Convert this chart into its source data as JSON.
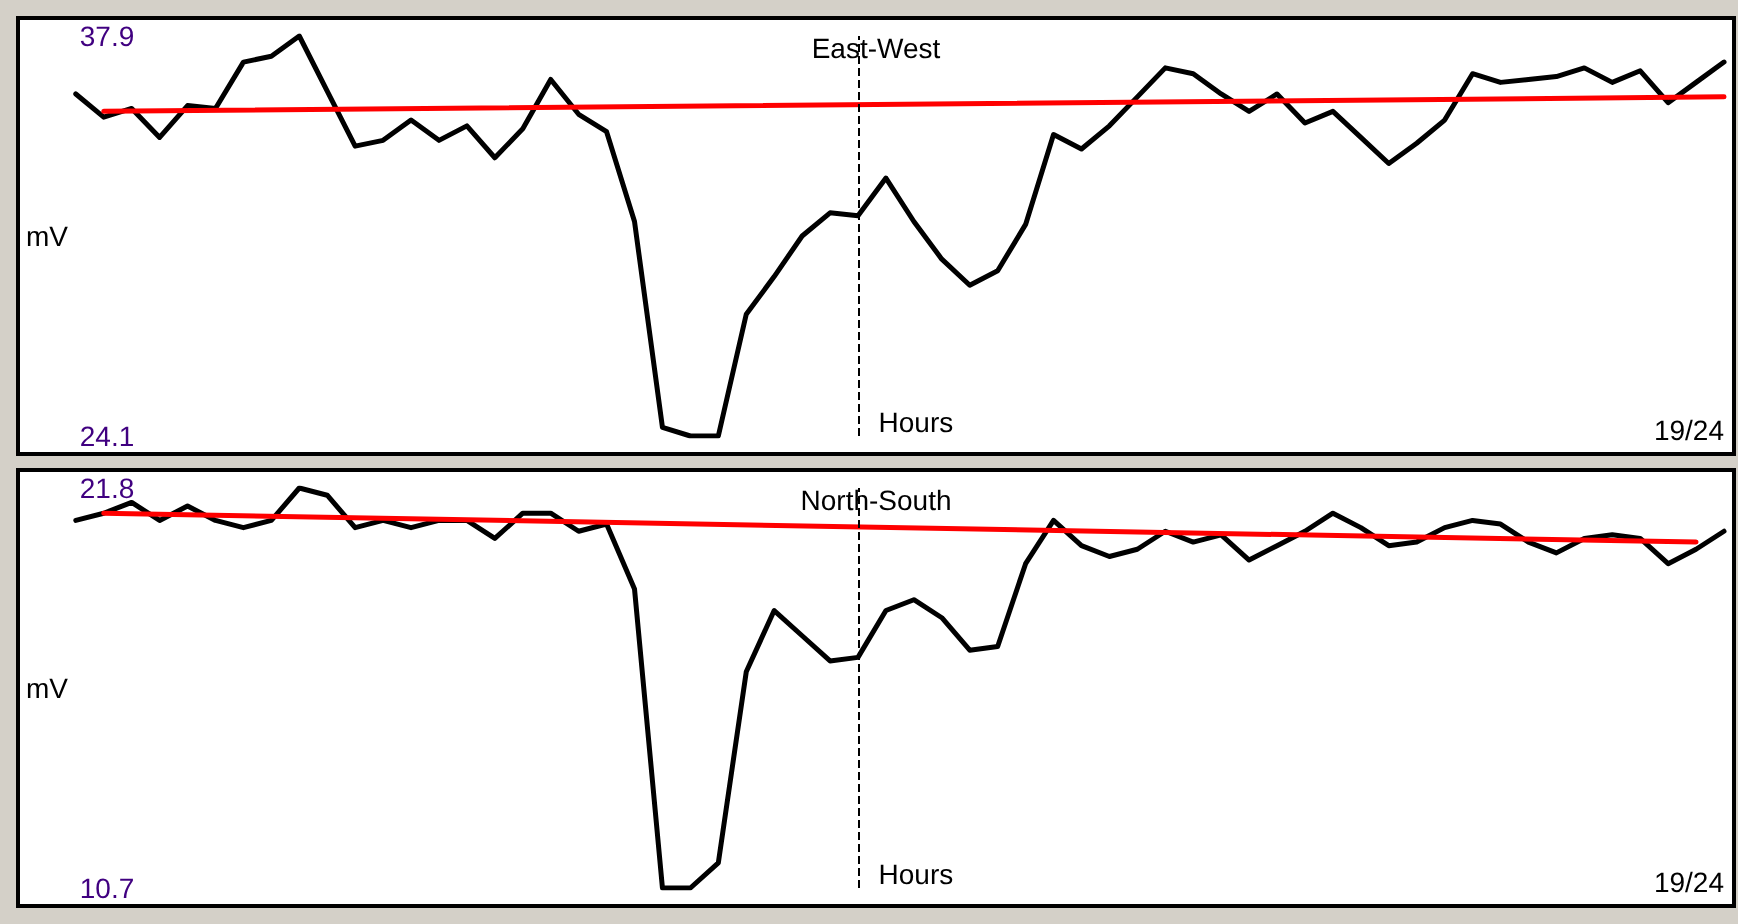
{
  "chart_data": [
    {
      "type": "line",
      "title": "East-West",
      "xlabel": "Hours",
      "ylabel": "mV",
      "categories": [
        null,
        null,
        null,
        null,
        null,
        null,
        null,
        null,
        null,
        null,
        null,
        null,
        null,
        null,
        null,
        null,
        null,
        null,
        null,
        null,
        null,
        null,
        null,
        null,
        null,
        null,
        null,
        null,
        null,
        null,
        null,
        null,
        null,
        null,
        null,
        null,
        null,
        null,
        null,
        null,
        null,
        null,
        null,
        null,
        null,
        null,
        null,
        null,
        null,
        null,
        null,
        null,
        null,
        null,
        null,
        null,
        null,
        null,
        null,
        null
      ],
      "series": [
        {
          "color": "#000000",
          "values": [
            35.9,
            35.1,
            35.4,
            34.4,
            35.5,
            35.4,
            37.0,
            37.2,
            37.9,
            36.0,
            34.1,
            34.3,
            35.0,
            34.3,
            34.8,
            33.7,
            34.7,
            36.4,
            35.2,
            34.6,
            31.5,
            24.4,
            24.1,
            24.1,
            28.3,
            29.6,
            31.0,
            31.8,
            31.7,
            33.0,
            31.5,
            30.2,
            29.3,
            29.8,
            31.4,
            34.5,
            34.0,
            34.8,
            35.8,
            36.8,
            36.6,
            35.9,
            35.3,
            35.9,
            34.9,
            35.3,
            34.4,
            33.5,
            34.2,
            35.0,
            36.6,
            36.3,
            36.4,
            36.5,
            36.8,
            36.3,
            36.7,
            35.6,
            36.3,
            37.0
          ]
        },
        {
          "type": "line",
          "color": "#ff0000",
          "values": [
            null,
            35.3,
            null,
            null,
            null,
            null,
            null,
            null,
            null,
            null,
            null,
            null,
            null,
            null,
            null,
            null,
            null,
            null,
            null,
            null,
            null,
            null,
            null,
            null,
            null,
            null,
            null,
            null,
            null,
            null,
            null,
            null,
            null,
            null,
            null,
            null,
            null,
            null,
            null,
            null,
            null,
            null,
            null,
            null,
            null,
            null,
            null,
            null,
            null,
            null,
            null,
            null,
            null,
            null,
            null,
            null,
            null,
            null,
            null,
            35.8
          ]
        }
      ],
      "ylim": [
        24.1,
        37.9
      ],
      "yticks": [
        37.9,
        24.1
      ],
      "tick_labels": "y",
      "marker": "none",
      "line_style": "solid",
      "annotations": [
        "19/24"
      ]
    },
    {
      "type": "line",
      "title": "North-South",
      "xlabel": "Hours",
      "ylabel": "mV",
      "categories": [
        null,
        null,
        null,
        null,
        null,
        null,
        null,
        null,
        null,
        null,
        null,
        null,
        null,
        null,
        null,
        null,
        null,
        null,
        null,
        null,
        null,
        null,
        null,
        null,
        null,
        null,
        null,
        null,
        null,
        null,
        null,
        null,
        null,
        null,
        null,
        null,
        null,
        null,
        null,
        null,
        null,
        null,
        null,
        null,
        null,
        null,
        null,
        null,
        null,
        null,
        null,
        null,
        null,
        null,
        null,
        null,
        null,
        null,
        null,
        null
      ],
      "series": [
        {
          "color": "#000000",
          "values": [
            20.9,
            21.1,
            21.4,
            20.9,
            21.3,
            20.9,
            20.7,
            20.9,
            21.8,
            21.6,
            20.7,
            20.9,
            20.7,
            20.9,
            20.9,
            20.4,
            21.1,
            21.1,
            20.6,
            20.8,
            19.0,
            10.7,
            10.7,
            11.4,
            16.7,
            18.4,
            17.7,
            17.0,
            17.1,
            18.4,
            18.7,
            18.2,
            17.3,
            17.4,
            19.7,
            20.9,
            20.2,
            19.9,
            20.1,
            20.6,
            20.3,
            20.5,
            19.8,
            20.2,
            20.6,
            21.1,
            20.7,
            20.2,
            20.3,
            20.7,
            20.9,
            20.8,
            20.3,
            20.0,
            20.4,
            20.5,
            20.4,
            19.7,
            20.1,
            20.6
          ]
        },
        {
          "type": "line",
          "color": "#ff0000",
          "values": [
            null,
            21.1,
            null,
            null,
            null,
            null,
            null,
            null,
            null,
            null,
            null,
            null,
            null,
            null,
            null,
            null,
            null,
            null,
            null,
            null,
            null,
            null,
            null,
            null,
            null,
            null,
            null,
            null,
            null,
            null,
            null,
            null,
            null,
            null,
            null,
            null,
            null,
            null,
            null,
            null,
            null,
            null,
            null,
            null,
            null,
            null,
            null,
            null,
            null,
            null,
            null,
            null,
            null,
            null,
            null,
            null,
            null,
            null,
            20.3,
            null
          ]
        }
      ],
      "ylim": [
        10.7,
        21.8
      ],
      "yticks": [
        21.8,
        10.7
      ],
      "tick_labels": "y",
      "marker": "none",
      "line_style": "solid",
      "annotations": [
        "19/24"
      ]
    }
  ]
}
